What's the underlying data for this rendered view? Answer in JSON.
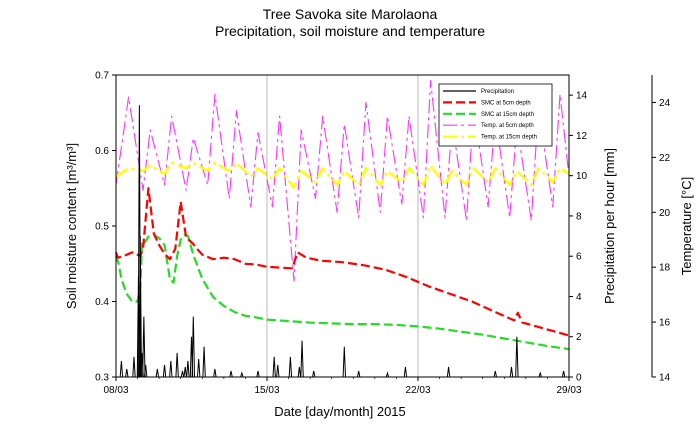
{
  "chart_data": {
    "type": "line",
    "title": "Tree Savoka site Marolaona",
    "subtitle": "Precipitation, soil moisture and temperature",
    "xlabel": "Date [day/month] 2015",
    "x_range": [
      "2015-03-08",
      "2015-03-29"
    ],
    "x_ticks": [
      {
        "label": "08/03",
        "date": "2015-03-08"
      },
      {
        "label": "15/03",
        "date": "2015-03-15"
      },
      {
        "label": "22/03",
        "date": "2015-03-22"
      },
      {
        "label": "29/03",
        "date": "2015-03-29"
      }
    ],
    "y_left": {
      "label": "Soil moisture content [m³/m³]",
      "range": [
        0.3,
        0.7
      ],
      "ticks": [
        "0.3",
        "0.4",
        "0.5",
        "0.6",
        "0.7"
      ]
    },
    "y_right1": {
      "label": "Precipitation per hour [mm]",
      "range": [
        0,
        15
      ],
      "ticks": [
        "0",
        "2",
        "4",
        "6",
        "8",
        "10",
        "12",
        "14"
      ]
    },
    "y_right2": {
      "label": "Temperature [°C]",
      "range": [
        14,
        25
      ],
      "ticks": [
        "14",
        "16",
        "18",
        "20",
        "22",
        "24"
      ]
    },
    "grid": "vertical lines at 15/03 and 22/03",
    "legend_position": "top-right",
    "colors": {
      "precipitation": "#000000",
      "smc5": "#ff0000",
      "smc15": "#22dd22",
      "temp5": "#ff33ff",
      "temp15": "#ffff00"
    },
    "series": [
      {
        "name": "Precipitation",
        "axis": "precipitation",
        "style": "bars",
        "x": [
          "2015-03-08T06:00",
          "2015-03-08T12:00",
          "2015-03-08T20:00",
          "2015-03-09T01:00",
          "2015-03-09T02:00",
          "2015-03-09T03:00",
          "2015-03-09T05:00",
          "2015-03-09T07:00",
          "2015-03-09T09:00",
          "2015-03-09T22:00",
          "2015-03-10T06:00",
          "2015-03-10T13:00",
          "2015-03-10T20:00",
          "2015-03-11T02:00",
          "2015-03-11T05:00",
          "2015-03-11T08:00",
          "2015-03-11T12:00",
          "2015-03-11T14:00",
          "2015-03-11T20:00",
          "2015-03-12T02:00",
          "2015-03-12T14:00",
          "2015-03-13T08:00",
          "2015-03-13T20:00",
          "2015-03-14T14:00",
          "2015-03-15T08:00",
          "2015-03-15T12:00",
          "2015-03-16T02:00",
          "2015-03-16T12:00",
          "2015-03-16T15:00",
          "2015-03-17T04:00",
          "2015-03-18T14:00",
          "2015-03-19T06:00",
          "2015-03-20T14:00",
          "2015-03-21T10:00",
          "2015-03-23T10:00",
          "2015-03-25T14:00",
          "2015-03-26T08:00",
          "2015-03-26T14:00",
          "2015-03-27T16:00",
          "2015-03-28T18:00"
        ],
        "values": [
          0.8,
          0.4,
          1.0,
          5.0,
          13.5,
          7.0,
          1.2,
          3.0,
          0.6,
          0.4,
          0.6,
          0.8,
          1.2,
          0.3,
          0.5,
          0.8,
          2.0,
          3.0,
          0.9,
          1.5,
          0.4,
          0.3,
          0.2,
          0.3,
          1.0,
          0.6,
          1.0,
          0.5,
          1.8,
          0.3,
          1.5,
          0.3,
          0.2,
          0.5,
          0.5,
          0.3,
          0.5,
          2.0,
          0.2,
          0.3
        ]
      },
      {
        "name": "SMC at 5cm depth",
        "axis": "smc",
        "dash": "9,4",
        "x": [
          "2015-03-08T00:00",
          "2015-03-08T02:00",
          "2015-03-08T08:00",
          "2015-03-08T12:00",
          "2015-03-08T18:00",
          "2015-03-09T00:00",
          "2015-03-09T03:00",
          "2015-03-09T06:00",
          "2015-03-09T12:00",
          "2015-03-09T18:00",
          "2015-03-10T00:00",
          "2015-03-10T06:00",
          "2015-03-10T12:00",
          "2015-03-10T18:00",
          "2015-03-11T00:00",
          "2015-03-11T06:00",
          "2015-03-11T14:00",
          "2015-03-11T18:00",
          "2015-03-12T00:00",
          "2015-03-12T12:00",
          "2015-03-13T00:00",
          "2015-03-13T12:00",
          "2015-03-14T00:00",
          "2015-03-14T12:00",
          "2015-03-15T00:00",
          "2015-03-15T12:00",
          "2015-03-16T04:00",
          "2015-03-16T10:00",
          "2015-03-16T20:00",
          "2015-03-17T12:00",
          "2015-03-18T12:00",
          "2015-03-19T12:00",
          "2015-03-20T12:00",
          "2015-03-21T12:00",
          "2015-03-22T12:00",
          "2015-03-23T12:00",
          "2015-03-24T12:00",
          "2015-03-25T12:00",
          "2015-03-26T09:00",
          "2015-03-26T11:00",
          "2015-03-26T15:00",
          "2015-03-26T20:00",
          "2015-03-27T12:00",
          "2015-03-28T12:00",
          "2015-03-29T00:00"
        ],
        "values": [
          0.465,
          0.458,
          0.46,
          0.462,
          0.465,
          0.462,
          0.46,
          0.47,
          0.55,
          0.49,
          0.475,
          0.463,
          0.456,
          0.47,
          0.532,
          0.485,
          0.476,
          0.47,
          0.462,
          0.456,
          0.458,
          0.456,
          0.45,
          0.449,
          0.446,
          0.445,
          0.444,
          0.465,
          0.458,
          0.454,
          0.452,
          0.448,
          0.442,
          0.432,
          0.42,
          0.41,
          0.4,
          0.387,
          0.376,
          0.375,
          0.385,
          0.372,
          0.367,
          0.359,
          0.355
        ]
      },
      {
        "name": "SMC at 15cm depth",
        "axis": "smc",
        "dash": "9,4",
        "x": [
          "2015-03-08T00:00",
          "2015-03-08T03:00",
          "2015-03-08T06:00",
          "2015-03-08T12:00",
          "2015-03-08T18:00",
          "2015-03-09T00:00",
          "2015-03-09T03:00",
          "2015-03-09T05:00",
          "2015-03-09T08:00",
          "2015-03-09T12:00",
          "2015-03-09T18:00",
          "2015-03-10T00:00",
          "2015-03-10T06:00",
          "2015-03-10T12:00",
          "2015-03-10T16:00",
          "2015-03-10T20:00",
          "2015-03-11T00:00",
          "2015-03-11T04:00",
          "2015-03-11T08:00",
          "2015-03-11T14:00",
          "2015-03-12T00:00",
          "2015-03-12T12:00",
          "2015-03-13T00:00",
          "2015-03-13T12:00",
          "2015-03-14T00:00",
          "2015-03-14T12:00",
          "2015-03-15T00:00",
          "2015-03-16T00:00",
          "2015-03-17T00:00",
          "2015-03-18T00:00",
          "2015-03-19T00:00",
          "2015-03-20T00:00",
          "2015-03-21T00:00",
          "2015-03-22T00:00",
          "2015-03-23T00:00",
          "2015-03-24T00:00",
          "2015-03-25T00:00",
          "2015-03-26T00:00",
          "2015-03-27T00:00",
          "2015-03-28T00:00",
          "2015-03-29T00:00"
        ],
        "values": [
          0.46,
          0.45,
          0.43,
          0.41,
          0.4,
          0.4,
          0.42,
          0.48,
          0.478,
          0.486,
          0.488,
          0.484,
          0.475,
          0.43,
          0.425,
          0.46,
          0.482,
          0.488,
          0.487,
          0.462,
          0.43,
          0.406,
          0.394,
          0.386,
          0.381,
          0.379,
          0.376,
          0.374,
          0.372,
          0.371,
          0.37,
          0.37,
          0.369,
          0.367,
          0.364,
          0.36,
          0.356,
          0.351,
          0.346,
          0.341,
          0.337
        ]
      },
      {
        "name": "Temp. at 5cm depth",
        "axis": "temperature",
        "dash": "14,4,3,4",
        "x": [
          "2015-03-08T00:00",
          "2015-03-08T14:00",
          "2015-03-09T06:00",
          "2015-03-09T14:00",
          "2015-03-10T06:00",
          "2015-03-10T14:00",
          "2015-03-11T06:00",
          "2015-03-11T14:00",
          "2015-03-12T06:00",
          "2015-03-12T14:00",
          "2015-03-13T06:00",
          "2015-03-13T14:00",
          "2015-03-14T06:00",
          "2015-03-14T14:00",
          "2015-03-15T06:00",
          "2015-03-15T14:00",
          "2015-03-16T06:00",
          "2015-03-16T14:00",
          "2015-03-17T06:00",
          "2015-03-17T14:00",
          "2015-03-18T06:00",
          "2015-03-18T14:00",
          "2015-03-19T06:00",
          "2015-03-19T14:00",
          "2015-03-20T06:00",
          "2015-03-20T14:00",
          "2015-03-21T06:00",
          "2015-03-21T14:00",
          "2015-03-22T06:00",
          "2015-03-22T14:00",
          "2015-03-23T06:00",
          "2015-03-23T14:00",
          "2015-03-24T06:00",
          "2015-03-24T14:00",
          "2015-03-25T06:00",
          "2015-03-25T14:00",
          "2015-03-26T06:00",
          "2015-03-26T14:00",
          "2015-03-27T06:00",
          "2015-03-27T14:00",
          "2015-03-28T06:00",
          "2015-03-28T14:00",
          "2015-03-29T00:00"
        ],
        "values": [
          21.0,
          24.2,
          20.8,
          23.0,
          21.0,
          23.5,
          20.8,
          22.7,
          21.0,
          24.3,
          20.5,
          23.7,
          20.2,
          22.9,
          20.2,
          23.5,
          17.5,
          23.0,
          20.5,
          23.5,
          20.0,
          23.2,
          19.8,
          24.0,
          20.0,
          23.5,
          20.3,
          23.5,
          19.8,
          24.8,
          19.8,
          23.3,
          19.7,
          23.8,
          20.2,
          23.5,
          19.8,
          23.2,
          19.7,
          23.8,
          20.2,
          24.3,
          21.3
        ]
      },
      {
        "name": "Temp. at 15cm depth",
        "axis": "temperature",
        "dash": "14,4,3,4",
        "x": [
          "2015-03-08T00:00",
          "2015-03-08T14:00",
          "2015-03-09T06:00",
          "2015-03-09T14:00",
          "2015-03-10T06:00",
          "2015-03-10T14:00",
          "2015-03-11T06:00",
          "2015-03-11T14:00",
          "2015-03-12T06:00",
          "2015-03-12T14:00",
          "2015-03-13T06:00",
          "2015-03-13T14:00",
          "2015-03-14T06:00",
          "2015-03-14T14:00",
          "2015-03-15T06:00",
          "2015-03-15T14:00",
          "2015-03-16T06:00",
          "2015-03-16T14:00",
          "2015-03-17T06:00",
          "2015-03-17T14:00",
          "2015-03-18T06:00",
          "2015-03-18T14:00",
          "2015-03-19T06:00",
          "2015-03-19T14:00",
          "2015-03-20T06:00",
          "2015-03-20T14:00",
          "2015-03-21T06:00",
          "2015-03-21T14:00",
          "2015-03-22T06:00",
          "2015-03-22T14:00",
          "2015-03-23T06:00",
          "2015-03-23T14:00",
          "2015-03-24T06:00",
          "2015-03-24T14:00",
          "2015-03-25T06:00",
          "2015-03-25T14:00",
          "2015-03-26T06:00",
          "2015-03-26T14:00",
          "2015-03-27T06:00",
          "2015-03-27T14:00",
          "2015-03-28T06:00",
          "2015-03-28T14:00",
          "2015-03-29T00:00"
        ],
        "values": [
          21.3,
          21.6,
          21.5,
          21.7,
          21.4,
          21.8,
          21.6,
          21.8,
          21.5,
          21.8,
          21.5,
          21.8,
          21.3,
          21.6,
          21.2,
          21.6,
          20.9,
          21.5,
          21.1,
          21.6,
          21.0,
          21.5,
          21.0,
          21.6,
          21.0,
          21.5,
          21.1,
          21.6,
          21.0,
          21.7,
          21.0,
          21.5,
          21.0,
          21.6,
          21.1,
          21.6,
          21.0,
          21.5,
          21.0,
          21.6,
          21.1,
          21.6,
          21.4
        ]
      }
    ]
  }
}
